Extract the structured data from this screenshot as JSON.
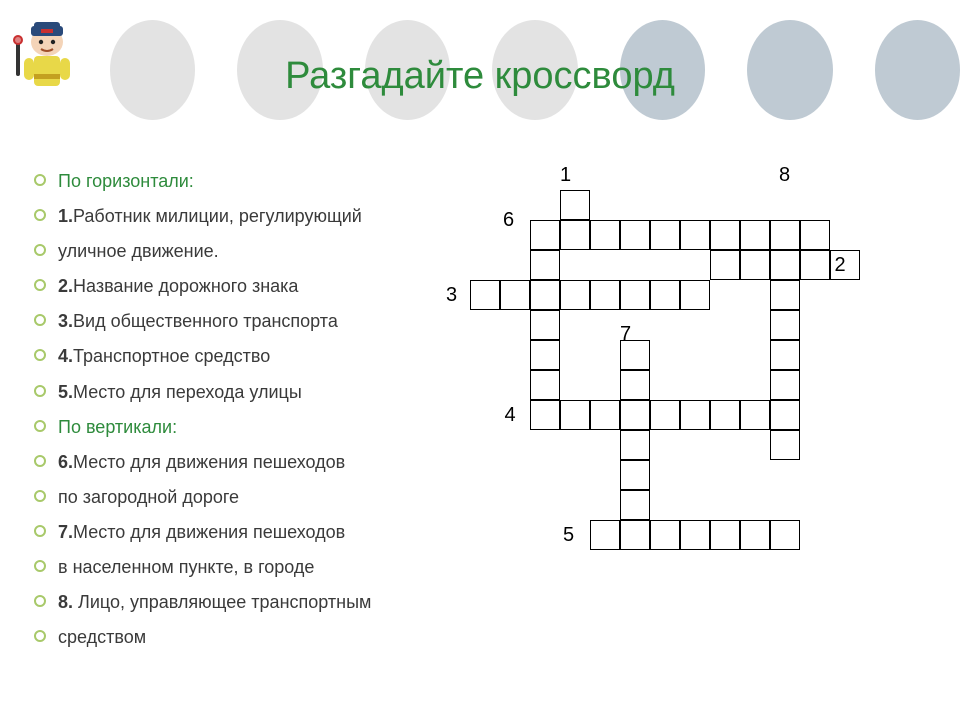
{
  "title": "Разгадайте  кроссворд",
  "bg_circle_colors": [
    "#e3e3e3",
    "#e3e3e3",
    "#e3e3e3",
    "#e3e3e3",
    "#bfcad3",
    "#bfcad3",
    "#bfcad3"
  ],
  "clues": [
    {
      "text": "По горизонтали:",
      "heading": true
    },
    {
      "num": "1.",
      "text": "Работник милиции, регулирующий"
    },
    {
      "text": "уличное движение."
    },
    {
      "num": "2.",
      "text": "Название дорожного знака"
    },
    {
      "num": "3.",
      "text": "Вид общественного транспорта"
    },
    {
      "num": "4.",
      "text": "Транспортное средство"
    },
    {
      "num": "5.",
      "text": "Место для перехода улицы"
    },
    {
      "text": "По вертикали:",
      "heading": true
    },
    {
      "num": "6.",
      "text": "Место для движения пешеходов"
    },
    {
      "text": "по загородной дороге"
    },
    {
      "num": "7.",
      "text": "Место для движения пешеходов"
    },
    {
      "text": "в населенном пункте, в городе"
    },
    {
      "num": "8. ",
      "text": "Лицо, управляющее транспортным"
    },
    {
      "text": "средством"
    }
  ],
  "crossword": {
    "cell_size": 30,
    "numbers": [
      {
        "n": "1",
        "col": 3,
        "row": -1
      },
      {
        "n": "8",
        "col": 10.3,
        "row": -1
      },
      {
        "n": "6",
        "col": 1.1,
        "row": 0.5
      },
      {
        "n": "2",
        "col": 12.15,
        "row": 2
      },
      {
        "n": "3",
        "col": -0.8,
        "row": 3
      },
      {
        "n": "7",
        "col": 5,
        "row": 4.3
      },
      {
        "n": "4",
        "col": 1.15,
        "row": 7
      },
      {
        "n": "5",
        "col": 3.1,
        "row": 11
      }
    ],
    "cells": [
      {
        "c": 3,
        "r": 0
      },
      {
        "c": 2,
        "r": 1
      },
      {
        "c": 3,
        "r": 1
      },
      {
        "c": 4,
        "r": 1
      },
      {
        "c": 5,
        "r": 1
      },
      {
        "c": 6,
        "r": 1
      },
      {
        "c": 7,
        "r": 1
      },
      {
        "c": 8,
        "r": 1
      },
      {
        "c": 9,
        "r": 1
      },
      {
        "c": 10,
        "r": 1
      },
      {
        "c": 11,
        "r": 1
      },
      {
        "c": 2,
        "r": 2
      },
      {
        "c": 8,
        "r": 2
      },
      {
        "c": 9,
        "r": 2
      },
      {
        "c": 10,
        "r": 2
      },
      {
        "c": 11,
        "r": 2
      },
      {
        "c": 12,
        "r": 2
      },
      {
        "c": 0,
        "r": 3
      },
      {
        "c": 1,
        "r": 3
      },
      {
        "c": 2,
        "r": 3
      },
      {
        "c": 3,
        "r": 3
      },
      {
        "c": 4,
        "r": 3
      },
      {
        "c": 5,
        "r": 3
      },
      {
        "c": 6,
        "r": 3
      },
      {
        "c": 7,
        "r": 3
      },
      {
        "c": 10,
        "r": 3
      },
      {
        "c": 2,
        "r": 4
      },
      {
        "c": 10,
        "r": 4
      },
      {
        "c": 2,
        "r": 5
      },
      {
        "c": 5,
        "r": 5
      },
      {
        "c": 10,
        "r": 5
      },
      {
        "c": 2,
        "r": 6
      },
      {
        "c": 5,
        "r": 6
      },
      {
        "c": 10,
        "r": 6
      },
      {
        "c": 2,
        "r": 7
      },
      {
        "c": 3,
        "r": 7
      },
      {
        "c": 4,
        "r": 7
      },
      {
        "c": 5,
        "r": 7
      },
      {
        "c": 6,
        "r": 7
      },
      {
        "c": 7,
        "r": 7
      },
      {
        "c": 8,
        "r": 7
      },
      {
        "c": 9,
        "r": 7
      },
      {
        "c": 10,
        "r": 7
      },
      {
        "c": 5,
        "r": 8
      },
      {
        "c": 10,
        "r": 8
      },
      {
        "c": 5,
        "r": 9
      },
      {
        "c": 5,
        "r": 10
      },
      {
        "c": 4,
        "r": 11
      },
      {
        "c": 5,
        "r": 11
      },
      {
        "c": 6,
        "r": 11
      },
      {
        "c": 7,
        "r": 11
      },
      {
        "c": 8,
        "r": 11
      },
      {
        "c": 9,
        "r": 11
      },
      {
        "c": 10,
        "r": 11
      }
    ]
  }
}
